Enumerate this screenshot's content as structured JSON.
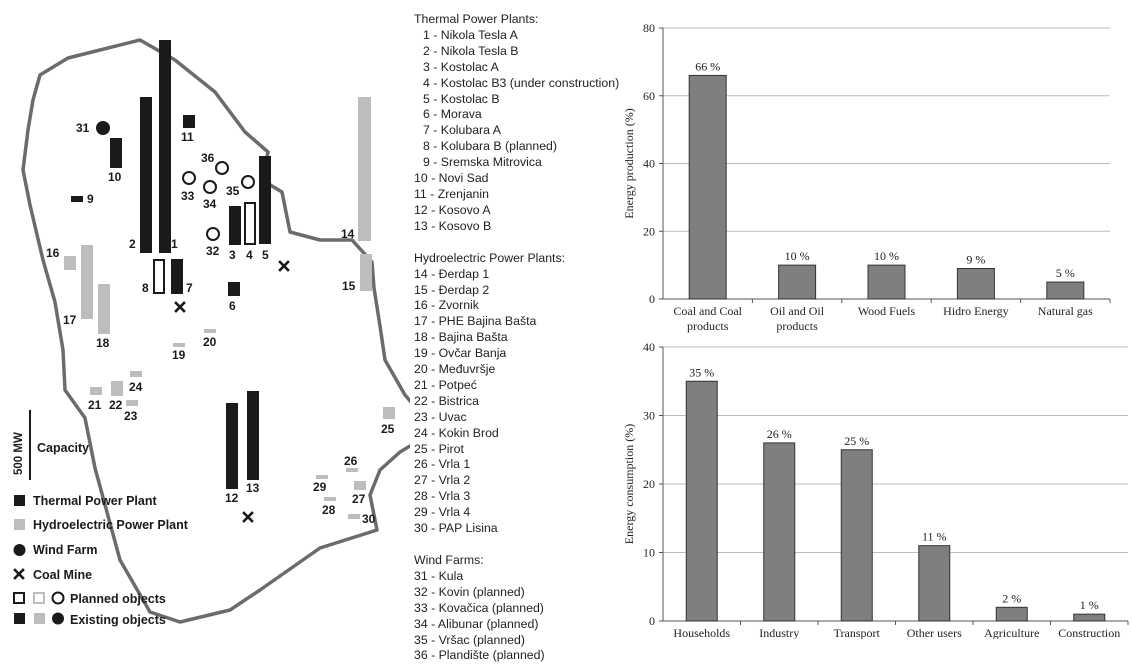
{
  "map": {
    "scale_label": "500 MW",
    "capacity_label": "Capacity",
    "legend": [
      {
        "symbol": "thermal",
        "label": "Thermal Power Plant"
      },
      {
        "symbol": "hydro",
        "label": "Hydroelectric Power Plant"
      },
      {
        "symbol": "wind",
        "label": "Wind Farm"
      },
      {
        "symbol": "mine",
        "label": "Coal Mine"
      },
      {
        "symbol": "planned",
        "label": "Planned objects"
      },
      {
        "symbol": "existing",
        "label": "Existing objects"
      }
    ],
    "colors": {
      "thermal": "#1a1a1a",
      "hydro": "#bdbdbd",
      "border": "#6b6b6b"
    },
    "bar_labels": [
      "1",
      "2",
      "3",
      "4",
      "5",
      "6",
      "7",
      "8",
      "9",
      "10",
      "11",
      "12",
      "13",
      "14",
      "15",
      "16",
      "17",
      "18",
      "19",
      "20",
      "21",
      "22",
      "23",
      "24",
      "25",
      "26",
      "27",
      "28",
      "29",
      "30",
      "31",
      "32",
      "33",
      "34",
      "35",
      "36"
    ]
  },
  "plant_groups": [
    {
      "title": "Thermal Power Plants:",
      "items": [
        "1 - Nikola Tesla A",
        "2 - Nikola Tesla B",
        "3 - Kostolac A",
        "4 - Kostolac B3 (under construction)",
        "5 - Kostolac B",
        "6 - Morava",
        "7 - Kolubara A",
        "8 - Kolubara B (planned)",
        "9 - Sremska Mitrovica",
        "10 - Novi Sad",
        "11 - Zrenjanin",
        "12 - Kosovo A",
        "13 - Kosovo B"
      ]
    },
    {
      "title": "Hydroelectric Power Plants:",
      "items": [
        "14 - Đerdap 1",
        "15 - Đerdap 2",
        "16 - Zvornik",
        "17 - PHE Bajina Bašta",
        "18 - Bajina Bašta",
        "19 - Ovčar Banja",
        "20 - Međuvršje",
        "21 - Potpeć",
        "22 - Bistrica",
        "23 - Uvac",
        "24 - Kokin Brod",
        "25 - Pirot",
        "26 - Vrla 1",
        "27 - Vrla 2",
        "28 - Vrla 3",
        "29 - Vrla 4",
        "30 - PAP Lisina"
      ]
    },
    {
      "title": "Wind Farms:",
      "items": [
        "31 - Kula",
        "32 - Kovin (planned)",
        "33 - Kovačica (planned)",
        "34 - Alibunar (planned)",
        "35 - Vršac (planned)",
        "36 - Plandište (planned)"
      ]
    }
  ],
  "chart_data": [
    {
      "type": "bar",
      "categories": [
        "Coal and Coal products",
        "Oil and Oil products",
        "Wood Fuels",
        "Hidro Energy",
        "Natural gas"
      ],
      "values": [
        66,
        10,
        10,
        9,
        5
      ],
      "data_labels": [
        "66 %",
        "10 %",
        "10 %",
        "9 %",
        "5 %"
      ],
      "ylabel": "Energy production (%)",
      "ylim": [
        0,
        80
      ],
      "yticks": [
        0,
        20,
        40,
        60,
        80
      ],
      "grid": true,
      "bar_color": "#7f7f7f"
    },
    {
      "type": "bar",
      "categories": [
        "Households",
        "Industry",
        "Transport",
        "Other users",
        "Agriculture",
        "Construction"
      ],
      "values": [
        35,
        26,
        25,
        11,
        2,
        1
      ],
      "data_labels": [
        "35 %",
        "26 %",
        "25 %",
        "11 %",
        "2 %",
        "1 %"
      ],
      "ylabel": "Energy consumption (%)",
      "ylim": [
        0,
        40
      ],
      "yticks": [
        0,
        10,
        20,
        30,
        40
      ],
      "grid": true,
      "bar_color": "#7f7f7f"
    }
  ]
}
